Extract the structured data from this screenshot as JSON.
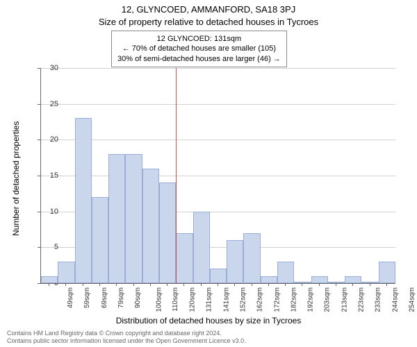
{
  "title": "12, GLYNCOED, AMMANFORD, SA18 3PJ",
  "subtitle": "Size of property relative to detached houses in Tycroes",
  "annotation": {
    "line1": "12 GLYNCOED: 131sqm",
    "line2": "← 70% of detached houses are smaller (105)",
    "line3": "30% of semi-detached houses are larger (46) →"
  },
  "chart": {
    "type": "histogram",
    "x_label": "Distribution of detached houses by size in Tycroes",
    "y_label": "Number of detached properties",
    "y_lim": [
      0,
      30
    ],
    "y_tick_step": 5,
    "categories": [
      "49sqm",
      "59sqm",
      "69sqm",
      "79sqm",
      "90sqm",
      "100sqm",
      "110sqm",
      "120sqm",
      "131sqm",
      "141sqm",
      "152sqm",
      "162sqm",
      "172sqm",
      "182sqm",
      "192sqm",
      "203sqm",
      "213sqm",
      "223sqm",
      "233sqm",
      "244sqm",
      "254sqm"
    ],
    "values": [
      1,
      3,
      23,
      12,
      18,
      18,
      16,
      14,
      7,
      10,
      2,
      6,
      7,
      1,
      3,
      0,
      1,
      0,
      1,
      0,
      3
    ],
    "reference_index": 8,
    "bar_color": "#cad6ec",
    "bar_border_color": "#9aaed5",
    "ref_line_color": "#c05050",
    "grid_color": "#d0d0d0",
    "background": "#ffffff",
    "title_fontsize": 13,
    "label_fontsize": 12,
    "tick_fontsize": 11
  },
  "footer": {
    "line1": "Contains HM Land Registry data © Crown copyright and database right 2024.",
    "line2": "Contains public sector information licensed under the Open Government Licence v3.0."
  }
}
